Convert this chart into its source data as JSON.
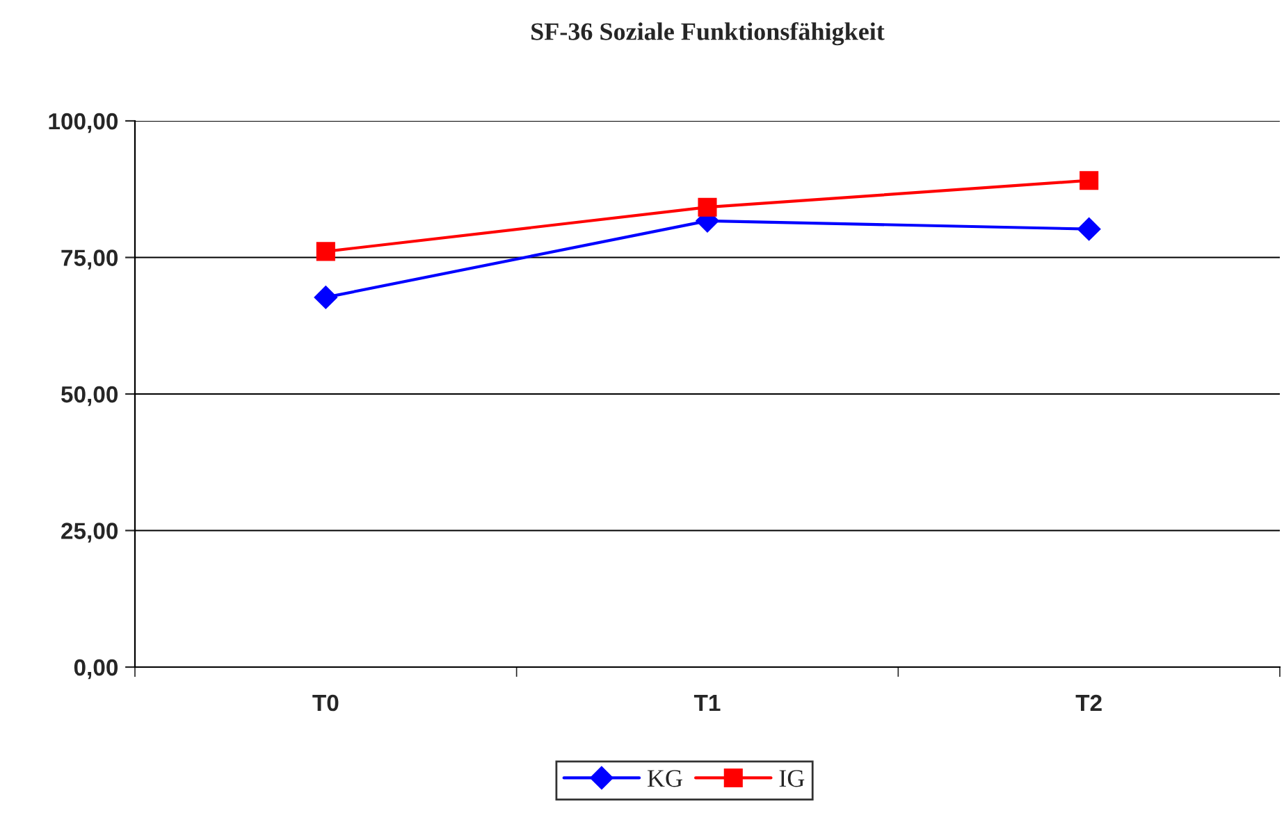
{
  "chart_data": {
    "type": "line",
    "title": "SF-36 Soziale Funktionsfähigkeit",
    "categories": [
      "T0",
      "T1",
      "T2"
    ],
    "series": [
      {
        "name": "KG",
        "color": "#0000ff",
        "marker": "diamond",
        "values": [
          67.7,
          81.7,
          80.2
        ]
      },
      {
        "name": "IG",
        "color": "#ff0000",
        "marker": "square",
        "values": [
          76.1,
          84.2,
          89.1
        ]
      }
    ],
    "ylim": [
      0,
      100
    ],
    "yticks": [
      {
        "value": 0,
        "label": "0,00"
      },
      {
        "value": 25,
        "label": "25,00"
      },
      {
        "value": 50,
        "label": "50,00"
      },
      {
        "value": 75,
        "label": "75,00"
      },
      {
        "value": 100,
        "label": "100,00"
      }
    ],
    "grid": "y",
    "legend": "bottom",
    "line_style": "solid"
  }
}
